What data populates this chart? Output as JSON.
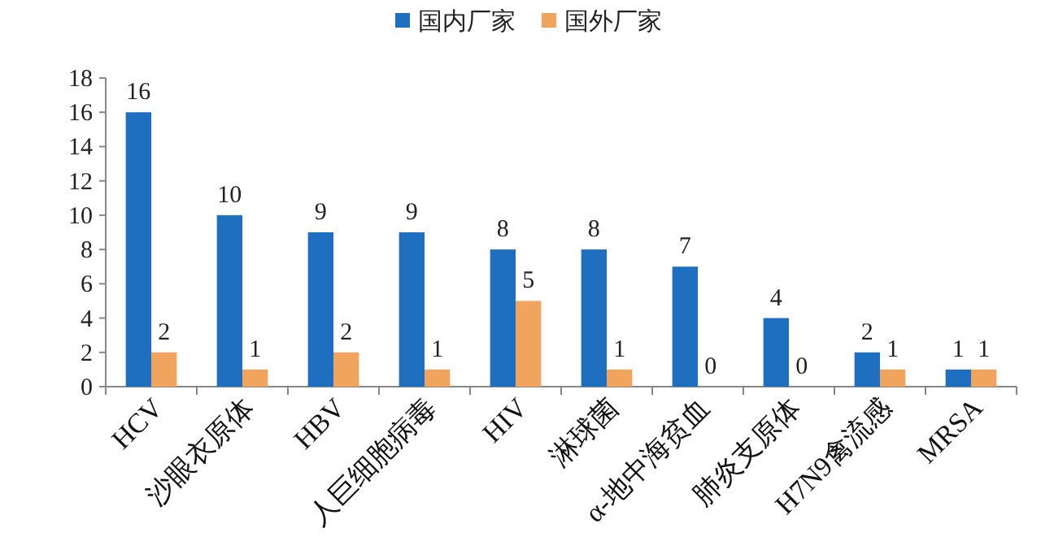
{
  "chart_data": {
    "type": "bar",
    "categories": [
      "HCV",
      "沙眼衣原体",
      "HBV",
      "人巨细胞病毒",
      "HIV",
      "淋球菌",
      "α-地中海贫血",
      "肺炎支原体",
      "H7N9禽流感",
      "MRSA"
    ],
    "series": [
      {
        "name": "国内厂家",
        "color": "#1f6fc0",
        "values": [
          16,
          10,
          9,
          9,
          8,
          8,
          7,
          4,
          2,
          1
        ]
      },
      {
        "name": "国外厂家",
        "color": "#f0a45e",
        "values": [
          2,
          1,
          2,
          1,
          5,
          1,
          0,
          0,
          1,
          1
        ]
      }
    ],
    "ylim": [
      0,
      18
    ],
    "yticks": [
      0,
      2,
      4,
      6,
      8,
      10,
      12,
      14,
      16,
      18
    ],
    "data_labels": true,
    "legend": "top",
    "grid": false
  }
}
